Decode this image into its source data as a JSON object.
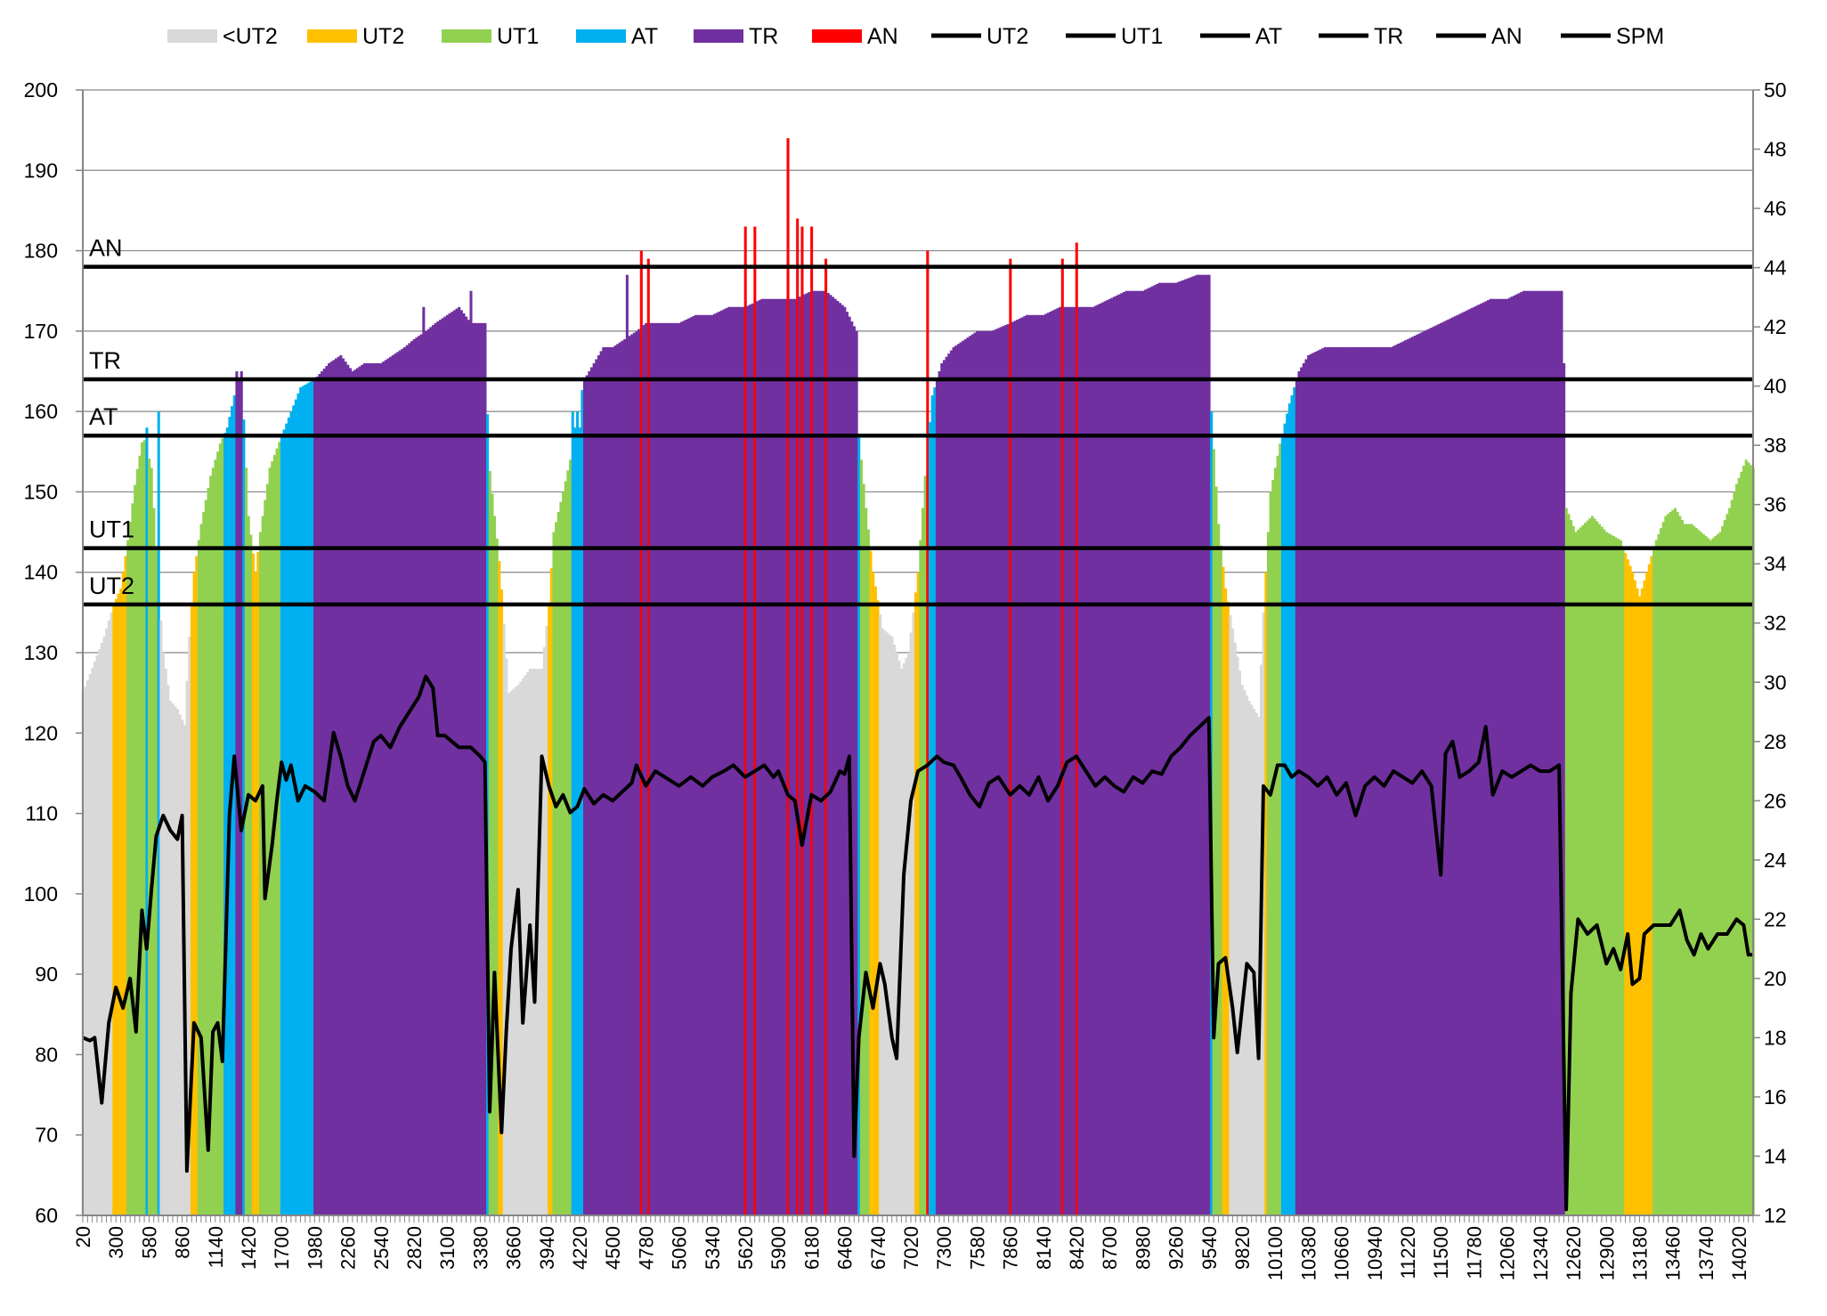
{
  "chart_data": {
    "type": "bar",
    "title": "",
    "xlabel": "",
    "ylabel": "",
    "ylim": [
      60,
      200
    ],
    "y2lim": [
      12,
      50
    ],
    "yticks": [
      60,
      70,
      80,
      90,
      100,
      110,
      120,
      130,
      140,
      150,
      160,
      170,
      180,
      190,
      200
    ],
    "y2ticks": [
      12,
      14,
      16,
      18,
      20,
      22,
      24,
      26,
      28,
      30,
      32,
      34,
      36,
      38,
      40,
      42,
      44,
      46,
      48,
      50
    ],
    "xlim": [
      20,
      14140
    ],
    "xtick_labels": [
      "20",
      "300",
      "580",
      "860",
      "1140",
      "1420",
      "1700",
      "1980",
      "2260",
      "2540",
      "2820",
      "3100",
      "3380",
      "3660",
      "3940",
      "4220",
      "4500",
      "4780",
      "5060",
      "5340",
      "5620",
      "5900",
      "6180",
      "6460",
      "6740",
      "7020",
      "7300",
      "7580",
      "7860",
      "8140",
      "8420",
      "8700",
      "8980",
      "9260",
      "9540",
      "9820",
      "10100",
      "10380",
      "10660",
      "10940",
      "11220",
      "11500",
      "11780",
      "12060",
      "12340",
      "12620",
      "12900",
      "13180",
      "13460",
      "13740",
      "14020"
    ],
    "zone_colors": {
      "<UT2": "#d9d9d9",
      "UT2": "#ffc000",
      "UT1": "#92d050",
      "AT": "#00b0f0",
      "TR": "#7030a0",
      "AN": "#ff0000"
    },
    "zone_thresholds": [
      {
        "name": "UT2",
        "value": 136
      },
      {
        "name": "UT1",
        "value": 143
      },
      {
        "name": "AT",
        "value": 157
      },
      {
        "name": "TR",
        "value": 164
      },
      {
        "name": "AN",
        "value": 178
      }
    ],
    "legend": [
      "<UT2",
      "UT2",
      "UT1",
      "AT",
      "TR",
      "AN",
      "UT2",
      "UT1",
      "AT",
      "TR",
      "AN",
      "SPM"
    ],
    "legend_swatch": [
      "#d9d9d9",
      "#ffc000",
      "#92d050",
      "#00b0f0",
      "#7030a0",
      "#ff0000",
      "#000000",
      "#000000",
      "#000000",
      "#000000",
      "#000000",
      "#000000"
    ],
    "legend_position": "top",
    "heart_rate_keypoints": [
      [
        20,
        125
      ],
      [
        200,
        132
      ],
      [
        280,
        136
      ],
      [
        340,
        138
      ],
      [
        400,
        144
      ],
      [
        470,
        152
      ],
      [
        530,
        157
      ],
      [
        600,
        153
      ],
      [
        660,
        138
      ],
      [
        700,
        130
      ],
      [
        760,
        124
      ],
      [
        820,
        123
      ],
      [
        880,
        121
      ],
      [
        920,
        132
      ],
      [
        960,
        140
      ],
      [
        1020,
        146
      ],
      [
        1100,
        152
      ],
      [
        1180,
        156
      ],
      [
        1240,
        158
      ],
      [
        1300,
        162
      ],
      [
        1360,
        165
      ],
      [
        1420,
        147
      ],
      [
        1480,
        140
      ],
      [
        1520,
        145
      ],
      [
        1600,
        153
      ],
      [
        1700,
        157
      ],
      [
        1780,
        160
      ],
      [
        1860,
        163
      ],
      [
        1980,
        164
      ],
      [
        2100,
        166
      ],
      [
        2200,
        167
      ],
      [
        2300,
        165
      ],
      [
        2400,
        166
      ],
      [
        2540,
        166
      ],
      [
        2640,
        167
      ],
      [
        2740,
        168
      ],
      [
        2820,
        169
      ],
      [
        2920,
        170
      ],
      [
        3000,
        171
      ],
      [
        3100,
        172
      ],
      [
        3200,
        173
      ],
      [
        3300,
        171
      ],
      [
        3420,
        171
      ],
      [
        3450,
        154
      ],
      [
        3550,
        140
      ],
      [
        3620,
        125
      ],
      [
        3700,
        126
      ],
      [
        3800,
        128
      ],
      [
        3900,
        128
      ],
      [
        3960,
        136
      ],
      [
        4000,
        145
      ],
      [
        4080,
        150
      ],
      [
        4140,
        154
      ],
      [
        4200,
        160
      ],
      [
        4260,
        164
      ],
      [
        4340,
        166
      ],
      [
        4420,
        168
      ],
      [
        4500,
        168
      ],
      [
        4600,
        169
      ],
      [
        4700,
        170
      ],
      [
        4780,
        171
      ],
      [
        4900,
        171
      ],
      [
        5060,
        171
      ],
      [
        5200,
        172
      ],
      [
        5340,
        172
      ],
      [
        5480,
        173
      ],
      [
        5620,
        173
      ],
      [
        5760,
        174
      ],
      [
        5900,
        174
      ],
      [
        6040,
        174
      ],
      [
        6180,
        175
      ],
      [
        6300,
        175
      ],
      [
        6460,
        173
      ],
      [
        6560,
        170
      ],
      [
        6580,
        157
      ],
      [
        6640,
        148
      ],
      [
        6700,
        140
      ],
      [
        6780,
        133
      ],
      [
        6860,
        132
      ],
      [
        6940,
        128
      ],
      [
        7000,
        130
      ],
      [
        7080,
        140
      ],
      [
        7140,
        152
      ],
      [
        7200,
        162
      ],
      [
        7280,
        166
      ],
      [
        7380,
        168
      ],
      [
        7480,
        169
      ],
      [
        7580,
        170
      ],
      [
        7700,
        170
      ],
      [
        7860,
        171
      ],
      [
        8000,
        172
      ],
      [
        8140,
        172
      ],
      [
        8280,
        173
      ],
      [
        8420,
        173
      ],
      [
        8560,
        173
      ],
      [
        8700,
        174
      ],
      [
        8840,
        175
      ],
      [
        8980,
        175
      ],
      [
        9120,
        176
      ],
      [
        9260,
        176
      ],
      [
        9440,
        177
      ],
      [
        9540,
        177
      ],
      [
        9560,
        160
      ],
      [
        9620,
        146
      ],
      [
        9680,
        138
      ],
      [
        9740,
        133
      ],
      [
        9820,
        126
      ],
      [
        9880,
        124
      ],
      [
        9960,
        122
      ],
      [
        10000,
        135
      ],
      [
        10060,
        150
      ],
      [
        10140,
        156
      ],
      [
        10220,
        161
      ],
      [
        10300,
        165
      ],
      [
        10380,
        167
      ],
      [
        10520,
        168
      ],
      [
        10660,
        168
      ],
      [
        10800,
        168
      ],
      [
        10940,
        168
      ],
      [
        11080,
        168
      ],
      [
        11220,
        169
      ],
      [
        11360,
        170
      ],
      [
        11500,
        171
      ],
      [
        11640,
        172
      ],
      [
        11780,
        173
      ],
      [
        11920,
        174
      ],
      [
        12060,
        174
      ],
      [
        12200,
        175
      ],
      [
        12340,
        175
      ],
      [
        12530,
        175
      ],
      [
        12560,
        148
      ],
      [
        12640,
        145
      ],
      [
        12780,
        147
      ],
      [
        12900,
        145
      ],
      [
        13020,
        144
      ],
      [
        13120,
        140
      ],
      [
        13180,
        137
      ],
      [
        13240,
        140
      ],
      [
        13320,
        144
      ],
      [
        13400,
        147
      ],
      [
        13480,
        148
      ],
      [
        13560,
        146
      ],
      [
        13620,
        146
      ],
      [
        13700,
        145
      ],
      [
        13780,
        144
      ],
      [
        13860,
        145
      ],
      [
        13940,
        148
      ],
      [
        14000,
        151
      ],
      [
        14080,
        154
      ],
      [
        14140,
        153
      ]
    ],
    "heart_rate_spikes": [
      [
        4160,
        160
      ],
      [
        4220,
        158
      ],
      [
        4740,
        180
      ],
      [
        4800,
        179
      ],
      [
        5620,
        183
      ],
      [
        5700,
        183
      ],
      [
        5980,
        194
      ],
      [
        6060,
        184
      ],
      [
        6100,
        183
      ],
      [
        6180,
        183
      ],
      [
        6300,
        179
      ],
      [
        7160,
        180
      ],
      [
        7860,
        179
      ],
      [
        8300,
        179
      ],
      [
        8420,
        181
      ],
      [
        1320,
        165
      ],
      [
        2900,
        173
      ],
      [
        3300,
        175
      ],
      [
        560,
        158
      ],
      [
        660,
        160
      ],
      [
        4620,
        177
      ]
    ],
    "spm_keypoints": [
      [
        20,
        18.0
      ],
      [
        80,
        17.9
      ],
      [
        120,
        18.0
      ],
      [
        180,
        15.8
      ],
      [
        240,
        18.5
      ],
      [
        300,
        19.7
      ],
      [
        360,
        19.0
      ],
      [
        420,
        20.0
      ],
      [
        470,
        18.2
      ],
      [
        520,
        22.3
      ],
      [
        560,
        21.0
      ],
      [
        600,
        23.0
      ],
      [
        640,
        24.8
      ],
      [
        700,
        25.5
      ],
      [
        760,
        25.0
      ],
      [
        820,
        24.7
      ],
      [
        860,
        25.5
      ],
      [
        900,
        13.5
      ],
      [
        960,
        18.5
      ],
      [
        1020,
        18.0
      ],
      [
        1080,
        14.2
      ],
      [
        1120,
        18.2
      ],
      [
        1160,
        18.5
      ],
      [
        1200,
        17.2
      ],
      [
        1260,
        25.5
      ],
      [
        1300,
        27.5
      ],
      [
        1360,
        25.0
      ],
      [
        1420,
        26.2
      ],
      [
        1480,
        26.0
      ],
      [
        1540,
        26.5
      ],
      [
        1560,
        22.7
      ],
      [
        1620,
        24.5
      ],
      [
        1660,
        26.0
      ],
      [
        1700,
        27.3
      ],
      [
        1740,
        26.7
      ],
      [
        1780,
        27.2
      ],
      [
        1840,
        26.0
      ],
      [
        1900,
        26.5
      ],
      [
        1980,
        26.3
      ],
      [
        2060,
        26.0
      ],
      [
        2140,
        28.3
      ],
      [
        2200,
        27.5
      ],
      [
        2260,
        26.5
      ],
      [
        2320,
        26.0
      ],
      [
        2400,
        27.0
      ],
      [
        2480,
        28.0
      ],
      [
        2540,
        28.2
      ],
      [
        2620,
        27.8
      ],
      [
        2700,
        28.5
      ],
      [
        2780,
        29.0
      ],
      [
        2860,
        29.5
      ],
      [
        2920,
        30.2
      ],
      [
        2980,
        29.8
      ],
      [
        3020,
        28.2
      ],
      [
        3080,
        28.2
      ],
      [
        3140,
        28.0
      ],
      [
        3200,
        27.8
      ],
      [
        3300,
        27.8
      ],
      [
        3380,
        27.5
      ],
      [
        3420,
        27.3
      ],
      [
        3460,
        15.5
      ],
      [
        3500,
        20.2
      ],
      [
        3560,
        14.8
      ],
      [
        3600,
        18.2
      ],
      [
        3640,
        21.0
      ],
      [
        3700,
        23.0
      ],
      [
        3740,
        18.5
      ],
      [
        3800,
        21.8
      ],
      [
        3840,
        19.2
      ],
      [
        3900,
        27.5
      ],
      [
        3960,
        26.5
      ],
      [
        4020,
        25.8
      ],
      [
        4080,
        26.2
      ],
      [
        4140,
        25.6
      ],
      [
        4200,
        25.8
      ],
      [
        4260,
        26.4
      ],
      [
        4340,
        25.9
      ],
      [
        4420,
        26.2
      ],
      [
        4500,
        26.0
      ],
      [
        4580,
        26.3
      ],
      [
        4660,
        26.6
      ],
      [
        4700,
        27.2
      ],
      [
        4780,
        26.5
      ],
      [
        4860,
        27.0
      ],
      [
        4940,
        26.8
      ],
      [
        5060,
        26.5
      ],
      [
        5160,
        26.8
      ],
      [
        5260,
        26.5
      ],
      [
        5340,
        26.8
      ],
      [
        5440,
        27.0
      ],
      [
        5520,
        27.2
      ],
      [
        5620,
        26.8
      ],
      [
        5700,
        27.0
      ],
      [
        5780,
        27.2
      ],
      [
        5860,
        26.8
      ],
      [
        5900,
        27.0
      ],
      [
        5980,
        26.2
      ],
      [
        6040,
        26.0
      ],
      [
        6100,
        24.5
      ],
      [
        6180,
        26.2
      ],
      [
        6260,
        26.0
      ],
      [
        6340,
        26.3
      ],
      [
        6420,
        27.0
      ],
      [
        6460,
        26.9
      ],
      [
        6500,
        27.5
      ],
      [
        6540,
        14.0
      ],
      [
        6580,
        18.0
      ],
      [
        6640,
        20.2
      ],
      [
        6700,
        19.0
      ],
      [
        6760,
        20.5
      ],
      [
        6800,
        19.8
      ],
      [
        6860,
        18.0
      ],
      [
        6900,
        17.3
      ],
      [
        6960,
        23.5
      ],
      [
        7020,
        26.0
      ],
      [
        7080,
        27.0
      ],
      [
        7160,
        27.2
      ],
      [
        7240,
        27.5
      ],
      [
        7300,
        27.3
      ],
      [
        7380,
        27.2
      ],
      [
        7440,
        26.8
      ],
      [
        7520,
        26.2
      ],
      [
        7600,
        25.8
      ],
      [
        7680,
        26.6
      ],
      [
        7760,
        26.8
      ],
      [
        7860,
        26.2
      ],
      [
        7940,
        26.5
      ],
      [
        8020,
        26.2
      ],
      [
        8100,
        26.8
      ],
      [
        8180,
        26.0
      ],
      [
        8260,
        26.5
      ],
      [
        8340,
        27.3
      ],
      [
        8420,
        27.5
      ],
      [
        8500,
        27.0
      ],
      [
        8580,
        26.5
      ],
      [
        8660,
        26.8
      ],
      [
        8740,
        26.5
      ],
      [
        8820,
        26.3
      ],
      [
        8900,
        26.8
      ],
      [
        8980,
        26.6
      ],
      [
        9060,
        27.0
      ],
      [
        9140,
        26.9
      ],
      [
        9220,
        27.5
      ],
      [
        9300,
        27.8
      ],
      [
        9380,
        28.2
      ],
      [
        9460,
        28.5
      ],
      [
        9540,
        28.8
      ],
      [
        9580,
        18.0
      ],
      [
        9620,
        20.5
      ],
      [
        9680,
        20.7
      ],
      [
        9740,
        19.0
      ],
      [
        9780,
        17.5
      ],
      [
        9820,
        19.0
      ],
      [
        9860,
        20.5
      ],
      [
        9920,
        20.2
      ],
      [
        9960,
        17.3
      ],
      [
        10000,
        26.5
      ],
      [
        10060,
        26.2
      ],
      [
        10120,
        27.2
      ],
      [
        10180,
        27.2
      ],
      [
        10240,
        26.8
      ],
      [
        10300,
        27.0
      ],
      [
        10380,
        26.8
      ],
      [
        10460,
        26.5
      ],
      [
        10540,
        26.8
      ],
      [
        10620,
        26.2
      ],
      [
        10700,
        26.6
      ],
      [
        10780,
        25.5
      ],
      [
        10860,
        26.5
      ],
      [
        10940,
        26.8
      ],
      [
        11020,
        26.5
      ],
      [
        11100,
        27.0
      ],
      [
        11180,
        26.8
      ],
      [
        11260,
        26.6
      ],
      [
        11340,
        27.0
      ],
      [
        11420,
        26.5
      ],
      [
        11500,
        23.5
      ],
      [
        11540,
        27.6
      ],
      [
        11600,
        28.0
      ],
      [
        11660,
        26.8
      ],
      [
        11740,
        27.0
      ],
      [
        11820,
        27.3
      ],
      [
        11880,
        28.5
      ],
      [
        11940,
        26.2
      ],
      [
        12020,
        27.0
      ],
      [
        12100,
        26.8
      ],
      [
        12180,
        27.0
      ],
      [
        12260,
        27.2
      ],
      [
        12340,
        27.0
      ],
      [
        12420,
        27.0
      ],
      [
        12500,
        27.2
      ],
      [
        12560,
        12.2
      ],
      [
        12600,
        19.5
      ],
      [
        12660,
        22.0
      ],
      [
        12740,
        21.5
      ],
      [
        12820,
        21.8
      ],
      [
        12900,
        20.5
      ],
      [
        12960,
        21.0
      ],
      [
        13020,
        20.3
      ],
      [
        13080,
        21.5
      ],
      [
        13120,
        19.8
      ],
      [
        13180,
        20.0
      ],
      [
        13220,
        21.5
      ],
      [
        13300,
        21.8
      ],
      [
        13360,
        21.8
      ],
      [
        13440,
        21.8
      ],
      [
        13520,
        22.3
      ],
      [
        13580,
        21.3
      ],
      [
        13640,
        20.8
      ],
      [
        13700,
        21.5
      ],
      [
        13760,
        21.0
      ],
      [
        13840,
        21.5
      ],
      [
        13920,
        21.5
      ],
      [
        14000,
        22.0
      ],
      [
        14060,
        21.8
      ],
      [
        14100,
        20.8
      ],
      [
        14140,
        20.8
      ]
    ]
  }
}
